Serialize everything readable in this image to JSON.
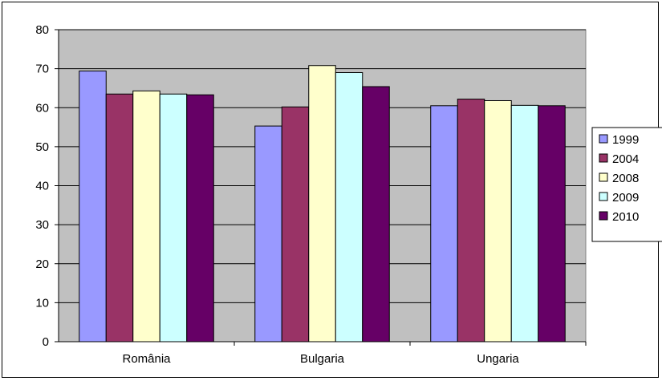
{
  "chart_data": {
    "type": "bar",
    "categories": [
      "România",
      "Bulgaria",
      "Ungaria"
    ],
    "series": [
      {
        "name": "1999",
        "color": "#9999ff",
        "values": [
          69.4,
          55.3,
          60.5
        ]
      },
      {
        "name": "2004",
        "color": "#993366",
        "values": [
          63.5,
          60.2,
          62.2
        ]
      },
      {
        "name": "2008",
        "color": "#ffffcc",
        "values": [
          64.3,
          70.8,
          61.8
        ]
      },
      {
        "name": "2009",
        "color": "#ccffff",
        "values": [
          63.5,
          69.0,
          60.6
        ]
      },
      {
        "name": "2010",
        "color": "#660066",
        "values": [
          63.3,
          65.4,
          60.5
        ]
      }
    ],
    "ylim": [
      0,
      80
    ],
    "yticks": [
      0,
      10,
      20,
      30,
      40,
      50,
      60,
      70,
      80
    ],
    "grid": true,
    "plot_background": "#c0c0c0",
    "legend_position": "right",
    "title": "",
    "xlabel": "",
    "ylabel": ""
  }
}
